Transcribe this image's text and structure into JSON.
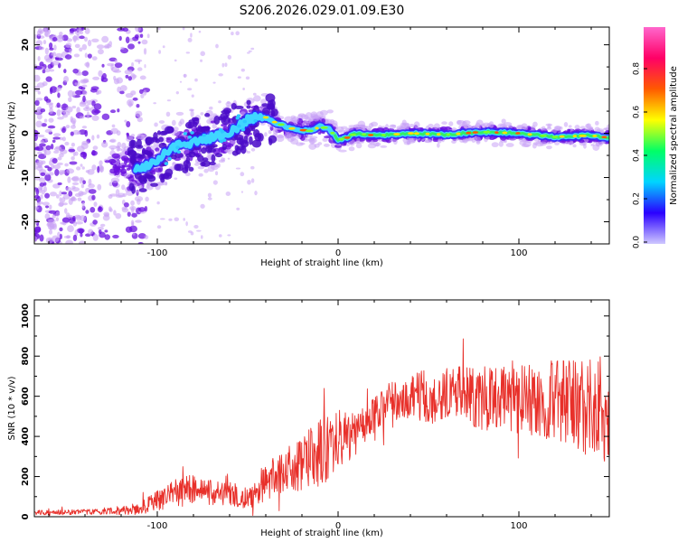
{
  "figure_title": "S206.2026.029.01.09.E30",
  "colors": {
    "snr_line": "#e8302a",
    "dots_light": "#c9a3f5",
    "dots_dark": "#6a10e0",
    "ridge_core": "#3fd6ff",
    "ridge_hot": "#ffe000"
  },
  "chart_data": [
    {
      "type": "heatmap",
      "name": "spectrogram",
      "xlabel": "Height of straight line (km)",
      "ylabel": "Frequency (Hz)",
      "xlim": [
        -168,
        150
      ],
      "ylim": [
        -25,
        24
      ],
      "xticks": [
        -100,
        0,
        100
      ],
      "yticks": [
        -20,
        -10,
        0,
        10,
        20
      ],
      "ridge": {
        "x": [
          -110,
          -100,
          -90,
          -80,
          -70,
          -60,
          -50,
          -42,
          -35,
          -25,
          -15,
          -10,
          -5,
          0,
          5,
          10,
          20,
          40,
          60,
          80,
          100,
          120,
          140,
          150
        ],
        "y": [
          -8,
          -6,
          -3,
          -2,
          -1,
          0,
          3,
          4,
          2.5,
          1,
          0.5,
          1.5,
          1,
          -1.5,
          -1,
          0,
          -0.5,
          0,
          -0.3,
          0.3,
          0,
          -0.8,
          -0.5,
          -1
        ]
      },
      "colorbar": {
        "label": "Normalized spectral amplitude",
        "range": [
          0,
          1
        ],
        "ticks": [
          "0.0",
          "0.2",
          "0.4",
          "0.6",
          "0.8"
        ],
        "stops": [
          "#cfc8ff",
          "#2a00ff",
          "#00d5ff",
          "#00ff66",
          "#ffff00",
          "#ff5a00",
          "#ff0066",
          "#ff66cc"
        ]
      }
    },
    {
      "type": "line",
      "name": "snr",
      "xlabel": "Height of straight line (km)",
      "ylabel": "SNR (10 * v/v)",
      "xlim": [
        -168,
        150
      ],
      "ylim": [
        0,
        1080
      ],
      "xticks": [
        -100,
        0,
        100
      ],
      "yticks": [
        0,
        200,
        400,
        600,
        800,
        1000
      ],
      "envelope": {
        "x": [
          -168,
          -130,
          -110,
          -95,
          -85,
          -70,
          -48,
          -42,
          -30,
          -20,
          -10,
          -5,
          0,
          10,
          20,
          30,
          40,
          50,
          70,
          90,
          110,
          130,
          150
        ],
        "mean": [
          20,
          25,
          40,
          100,
          140,
          120,
          100,
          160,
          230,
          270,
          320,
          340,
          380,
          420,
          510,
          580,
          600,
          600,
          600,
          580,
          590,
          560,
          520
        ],
        "amp": [
          12,
          14,
          30,
          60,
          80,
          60,
          60,
          90,
          110,
          140,
          170,
          160,
          150,
          110,
          90,
          100,
          130,
          140,
          150,
          170,
          190,
          220,
          270
        ]
      }
    }
  ]
}
